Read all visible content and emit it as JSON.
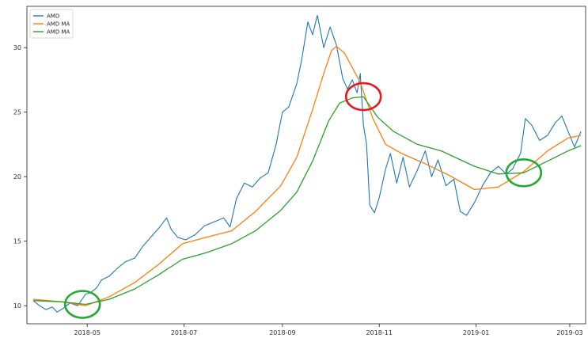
{
  "chart_data": {
    "type": "line",
    "title": "",
    "xlabel": "",
    "ylabel": "",
    "grid": false,
    "legend_placement": "top-left",
    "xlim": [
      "2018-03-24",
      "2019-03-11"
    ],
    "ylim": [
      8.6,
      33.2
    ],
    "x_tick_labels": [
      "2018-05",
      "2018-07",
      "2018-09",
      "2018-11",
      "2019-01",
      "2019-03"
    ],
    "y_tick_values": [
      10,
      15,
      20,
      25,
      30
    ],
    "colors": {
      "AMD": "#1f77b4",
      "AMD MA": "#ff7f0e",
      "AMD MA 2": "#2ca02c",
      "highlight_red": "#e31a1c",
      "highlight_green": "#22aa33"
    },
    "legend": [
      "AMD",
      "AMD MA",
      "AMD MA"
    ],
    "series": [
      {
        "name": "AMD",
        "color": "#1f77b4",
        "points": [
          [
            "2018-03-28",
            10.4
          ],
          [
            "2018-04-01",
            10.0
          ],
          [
            "2018-04-05",
            9.7
          ],
          [
            "2018-04-09",
            9.9
          ],
          [
            "2018-04-12",
            9.5
          ],
          [
            "2018-04-16",
            9.8
          ],
          [
            "2018-04-20",
            10.2
          ],
          [
            "2018-04-25",
            10.0
          ],
          [
            "2018-04-30",
            10.9
          ],
          [
            "2018-05-03",
            11.0
          ],
          [
            "2018-05-07",
            11.4
          ],
          [
            "2018-05-10",
            12.0
          ],
          [
            "2018-05-15",
            12.3
          ],
          [
            "2018-05-20",
            12.9
          ],
          [
            "2018-05-25",
            13.4
          ],
          [
            "2018-05-31",
            13.7
          ],
          [
            "2018-06-05",
            14.6
          ],
          [
            "2018-06-10",
            15.3
          ],
          [
            "2018-06-15",
            16.0
          ],
          [
            "2018-06-20",
            16.8
          ],
          [
            "2018-06-23",
            15.9
          ],
          [
            "2018-06-27",
            15.3
          ],
          [
            "2018-07-02",
            15.1
          ],
          [
            "2018-07-08",
            15.5
          ],
          [
            "2018-07-14",
            16.2
          ],
          [
            "2018-07-20",
            16.5
          ],
          [
            "2018-07-26",
            16.8
          ],
          [
            "2018-07-30",
            16.1
          ],
          [
            "2018-08-03",
            18.3
          ],
          [
            "2018-08-08",
            19.5
          ],
          [
            "2018-08-13",
            19.2
          ],
          [
            "2018-08-18",
            19.9
          ],
          [
            "2018-08-23",
            20.3
          ],
          [
            "2018-08-28",
            22.5
          ],
          [
            "2018-09-01",
            25.0
          ],
          [
            "2018-09-05",
            25.4
          ],
          [
            "2018-09-10",
            27.2
          ],
          [
            "2018-09-13",
            29.0
          ],
          [
            "2018-09-17",
            32.0
          ],
          [
            "2018-09-20",
            31.0
          ],
          [
            "2018-09-23",
            32.5
          ],
          [
            "2018-09-27",
            30.0
          ],
          [
            "2018-10-01",
            31.6
          ],
          [
            "2018-10-05",
            30.2
          ],
          [
            "2018-10-09",
            27.6
          ],
          [
            "2018-10-12",
            26.8
          ],
          [
            "2018-10-15",
            27.5
          ],
          [
            "2018-10-18",
            26.5
          ],
          [
            "2018-10-20",
            28.0
          ],
          [
            "2018-10-22",
            24.0
          ],
          [
            "2018-10-24",
            22.5
          ],
          [
            "2018-10-26",
            17.8
          ],
          [
            "2018-10-29",
            17.2
          ],
          [
            "2018-11-01",
            18.4
          ],
          [
            "2018-11-05",
            20.6
          ],
          [
            "2018-11-08",
            21.8
          ],
          [
            "2018-11-12",
            19.5
          ],
          [
            "2018-11-16",
            21.5
          ],
          [
            "2018-11-20",
            19.2
          ],
          [
            "2018-11-25",
            20.5
          ],
          [
            "2018-11-30",
            22.0
          ],
          [
            "2018-12-04",
            20.0
          ],
          [
            "2018-12-08",
            21.3
          ],
          [
            "2018-12-13",
            19.3
          ],
          [
            "2018-12-18",
            19.8
          ],
          [
            "2018-12-22",
            17.3
          ],
          [
            "2018-12-26",
            17.0
          ],
          [
            "2018-12-31",
            18.0
          ],
          [
            "2019-01-05",
            19.3
          ],
          [
            "2019-01-10",
            20.3
          ],
          [
            "2019-01-15",
            20.8
          ],
          [
            "2019-01-20",
            20.2
          ],
          [
            "2019-01-24",
            20.6
          ],
          [
            "2019-01-29",
            21.8
          ],
          [
            "2019-02-01",
            24.5
          ],
          [
            "2019-02-05",
            24.0
          ],
          [
            "2019-02-10",
            22.8
          ],
          [
            "2019-02-15",
            23.2
          ],
          [
            "2019-02-20",
            24.2
          ],
          [
            "2019-02-24",
            24.7
          ],
          [
            "2019-02-28",
            23.5
          ],
          [
            "2019-03-04",
            22.3
          ],
          [
            "2019-03-08",
            23.5
          ]
        ]
      },
      {
        "name": "AMD MA",
        "color": "#ff7f0e",
        "points": [
          [
            "2018-03-28",
            10.5
          ],
          [
            "2018-04-15",
            10.3
          ],
          [
            "2018-04-30",
            10.0
          ],
          [
            "2018-05-15",
            10.7
          ],
          [
            "2018-05-31",
            11.8
          ],
          [
            "2018-06-15",
            13.2
          ],
          [
            "2018-06-30",
            14.8
          ],
          [
            "2018-07-15",
            15.3
          ],
          [
            "2018-07-31",
            15.8
          ],
          [
            "2018-08-15",
            17.3
          ],
          [
            "2018-08-31",
            19.3
          ],
          [
            "2018-09-10",
            21.5
          ],
          [
            "2018-09-20",
            25.2
          ],
          [
            "2018-09-27",
            28.0
          ],
          [
            "2018-10-02",
            29.8
          ],
          [
            "2018-10-05",
            30.1
          ],
          [
            "2018-10-10",
            29.6
          ],
          [
            "2018-10-20",
            27.3
          ],
          [
            "2018-10-28",
            24.5
          ],
          [
            "2018-11-05",
            22.5
          ],
          [
            "2018-11-15",
            21.8
          ],
          [
            "2018-11-30",
            21.0
          ],
          [
            "2018-12-15",
            20.1
          ],
          [
            "2018-12-31",
            19.0
          ],
          [
            "2019-01-15",
            19.2
          ],
          [
            "2019-01-31",
            20.4
          ],
          [
            "2019-02-15",
            22.0
          ],
          [
            "2019-02-28",
            23.0
          ],
          [
            "2019-03-08",
            23.2
          ]
        ]
      },
      {
        "name": "AMD MA",
        "color": "#2ca02c",
        "points": [
          [
            "2018-03-28",
            10.4
          ],
          [
            "2018-04-15",
            10.3
          ],
          [
            "2018-04-30",
            10.1
          ],
          [
            "2018-05-15",
            10.5
          ],
          [
            "2018-05-31",
            11.3
          ],
          [
            "2018-06-15",
            12.4
          ],
          [
            "2018-06-30",
            13.6
          ],
          [
            "2018-07-15",
            14.1
          ],
          [
            "2018-07-31",
            14.8
          ],
          [
            "2018-08-15",
            15.8
          ],
          [
            "2018-08-31",
            17.4
          ],
          [
            "2018-09-10",
            18.8
          ],
          [
            "2018-09-20",
            21.2
          ],
          [
            "2018-09-30",
            24.3
          ],
          [
            "2018-10-07",
            25.7
          ],
          [
            "2018-10-15",
            26.1
          ],
          [
            "2018-10-22",
            26.2
          ],
          [
            "2018-10-31",
            24.6
          ],
          [
            "2018-11-10",
            23.5
          ],
          [
            "2018-11-25",
            22.5
          ],
          [
            "2018-12-10",
            22.0
          ],
          [
            "2018-12-31",
            20.8
          ],
          [
            "2019-01-15",
            20.2
          ],
          [
            "2019-01-31",
            20.3
          ],
          [
            "2019-02-15",
            21.2
          ],
          [
            "2019-02-28",
            22.0
          ],
          [
            "2019-03-08",
            22.4
          ]
        ]
      }
    ],
    "annotations": [
      {
        "shape": "ellipse",
        "color": "#22aa33",
        "x": "2018-04-28",
        "y": 10.1
      },
      {
        "shape": "ellipse",
        "color": "#e31a1c",
        "x": "2018-10-22",
        "y": 26.2
      },
      {
        "shape": "ellipse",
        "color": "#22aa33",
        "x": "2019-01-31",
        "y": 20.3
      }
    ]
  }
}
